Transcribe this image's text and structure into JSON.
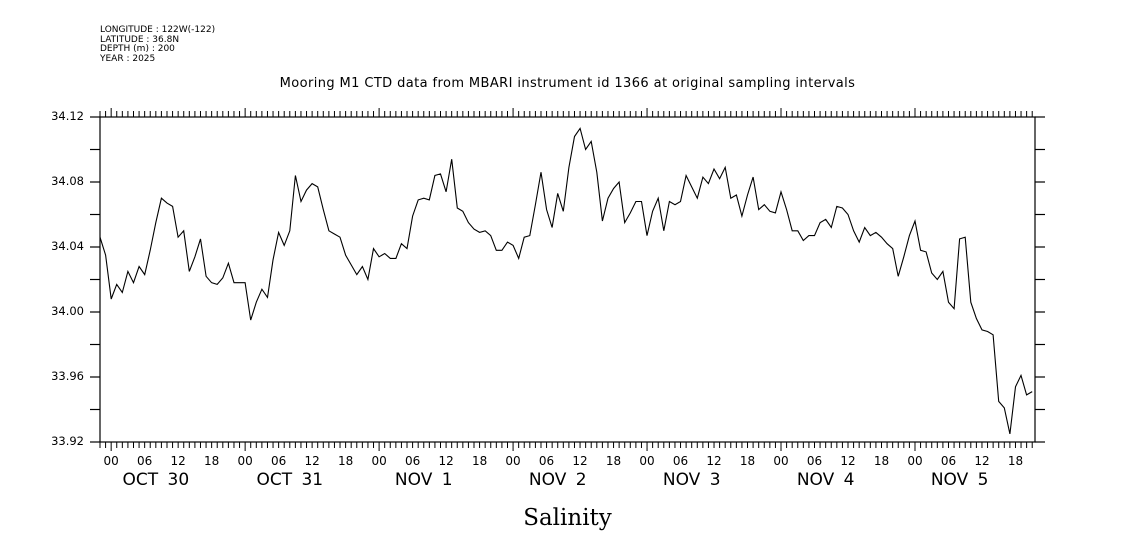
{
  "header": {
    "longitude": "LONGITUDE : 122W(-122)",
    "latitude": "LATITUDE : 36.8N",
    "depth": "DEPTH (m) : 200",
    "year": "YEAR : 2025"
  },
  "chart_data": {
    "type": "line",
    "title": "Mooring M1 CTD data from MBARI instrument id 1366 at original sampling intervals",
    "xlabel": "",
    "ylabel": "",
    "bottom_label": "Salinity",
    "ylim": [
      33.92,
      34.12
    ],
    "y_ticks": [
      "34.12",
      "34.08",
      "34.04",
      "34.00",
      "33.96",
      "33.92"
    ],
    "x_unit": "hours since OCT 30 00:00",
    "xlim": [
      -2,
      165.5
    ],
    "hour_tick_labels": [
      "00",
      "06",
      "12",
      "18",
      "00",
      "06",
      "12",
      "18",
      "00",
      "06",
      "12",
      "18",
      "00",
      "06",
      "12",
      "18",
      "00",
      "06",
      "12",
      "18",
      "00",
      "06",
      "12",
      "18",
      "00",
      "06",
      "12",
      "18"
    ],
    "day_labels": [
      "OCT 30",
      "OCT 31",
      "NOV  1",
      "NOV  2",
      "NOV  3",
      "NOV  4",
      "NOV  5"
    ],
    "grid": false,
    "series": [
      {
        "name": "Salinity",
        "start_hour": -2,
        "step_hours": 1,
        "values": [
          34.046,
          34.035,
          34.008,
          34.017,
          34.012,
          34.025,
          34.018,
          34.028,
          34.023,
          34.038,
          34.055,
          34.07,
          34.067,
          34.065,
          34.046,
          34.05,
          34.025,
          34.034,
          34.045,
          34.022,
          34.018,
          34.017,
          34.021,
          34.03,
          34.018,
          34.018,
          34.018,
          33.995,
          34.006,
          34.014,
          34.009,
          34.032,
          34.049,
          34.041,
          34.05,
          34.084,
          34.068,
          34.075,
          34.079,
          34.077,
          34.063,
          34.05,
          34.048,
          34.046,
          34.035,
          34.029,
          34.023,
          34.028,
          34.02,
          34.039,
          34.034,
          34.036,
          34.033,
          34.033,
          34.042,
          34.039,
          34.059,
          34.069,
          34.07,
          34.069,
          34.084,
          34.085,
          34.074,
          34.094,
          34.064,
          34.062,
          34.055,
          34.051,
          34.049,
          34.05,
          34.047,
          34.038,
          34.038,
          34.043,
          34.041,
          34.033,
          34.046,
          34.047,
          34.066,
          34.086,
          34.063,
          34.052,
          34.073,
          34.062,
          34.089,
          34.108,
          34.113,
          34.1,
          34.105,
          34.086,
          34.056,
          34.07,
          34.076,
          34.08,
          34.055,
          34.061,
          34.068,
          34.068,
          34.047,
          34.062,
          34.07,
          34.05,
          34.068,
          34.066,
          34.068,
          34.084,
          34.077,
          34.07,
          34.083,
          34.079,
          34.088,
          34.082,
          34.089,
          34.07,
          34.072,
          34.059,
          34.072,
          34.083,
          34.063,
          34.066,
          34.062,
          34.061,
          34.074,
          34.063,
          34.05,
          34.05,
          34.044,
          34.047,
          34.047,
          34.055,
          34.057,
          34.052,
          34.065,
          34.064,
          34.06,
          34.05,
          34.043,
          34.052,
          34.047,
          34.049,
          34.046,
          34.042,
          34.039,
          34.022,
          34.034,
          34.047,
          34.056,
          34.038,
          34.037,
          34.024,
          34.02,
          34.025,
          34.006,
          34.002,
          34.045,
          34.046,
          34.006,
          33.996,
          33.989,
          33.988,
          33.986,
          33.945,
          33.941,
          33.925,
          33.954,
          33.961,
          33.949,
          33.951
        ]
      }
    ]
  }
}
